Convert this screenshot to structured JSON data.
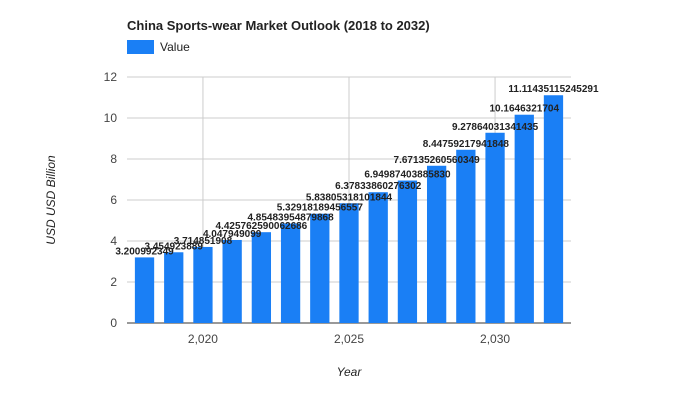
{
  "chart_data": {
    "type": "bar",
    "title": "China Sports-wear Market Outlook (2018 to 2032)",
    "xlabel": "Year",
    "ylabel": "USD USD Billion",
    "legend": {
      "placement": "top-left",
      "label": "Value"
    },
    "grid": true,
    "xlim": [
      2017.4,
      2032.6
    ],
    "ylim": [
      0,
      12
    ],
    "yticks": [
      0,
      2,
      4,
      6,
      8,
      10,
      12
    ],
    "xticks": [
      2020,
      2025,
      2030
    ],
    "xtick_labels": [
      "2,020",
      "2,025",
      "2,030"
    ],
    "series": [
      {
        "name": "Value",
        "color": "#1a7ff5",
        "x": [
          2018,
          2019,
          2020,
          2021,
          2022,
          2023,
          2024,
          2025,
          2026,
          2027,
          2028,
          2029,
          2030,
          2031,
          2032
        ],
        "values": [
          3.2,
          3.45,
          3.71,
          4.05,
          4.43,
          4.85,
          5.33,
          5.84,
          6.38,
          6.95,
          7.67,
          8.45,
          9.28,
          10.16,
          11.11
        ],
        "labels": [
          "3.200992349",
          "3.454923889",
          "3.714851908",
          "4.047949099",
          "4.425762590062686",
          "4.85483954879868",
          "5.32918189456557",
          "5.83805318101844",
          "6.37833860276302",
          "6.94987403885830",
          "7.67135260560349",
          "8.44759217941848",
          "9.27864031341435",
          "10.1646321704",
          "11.11435115245291"
        ]
      }
    ]
  }
}
